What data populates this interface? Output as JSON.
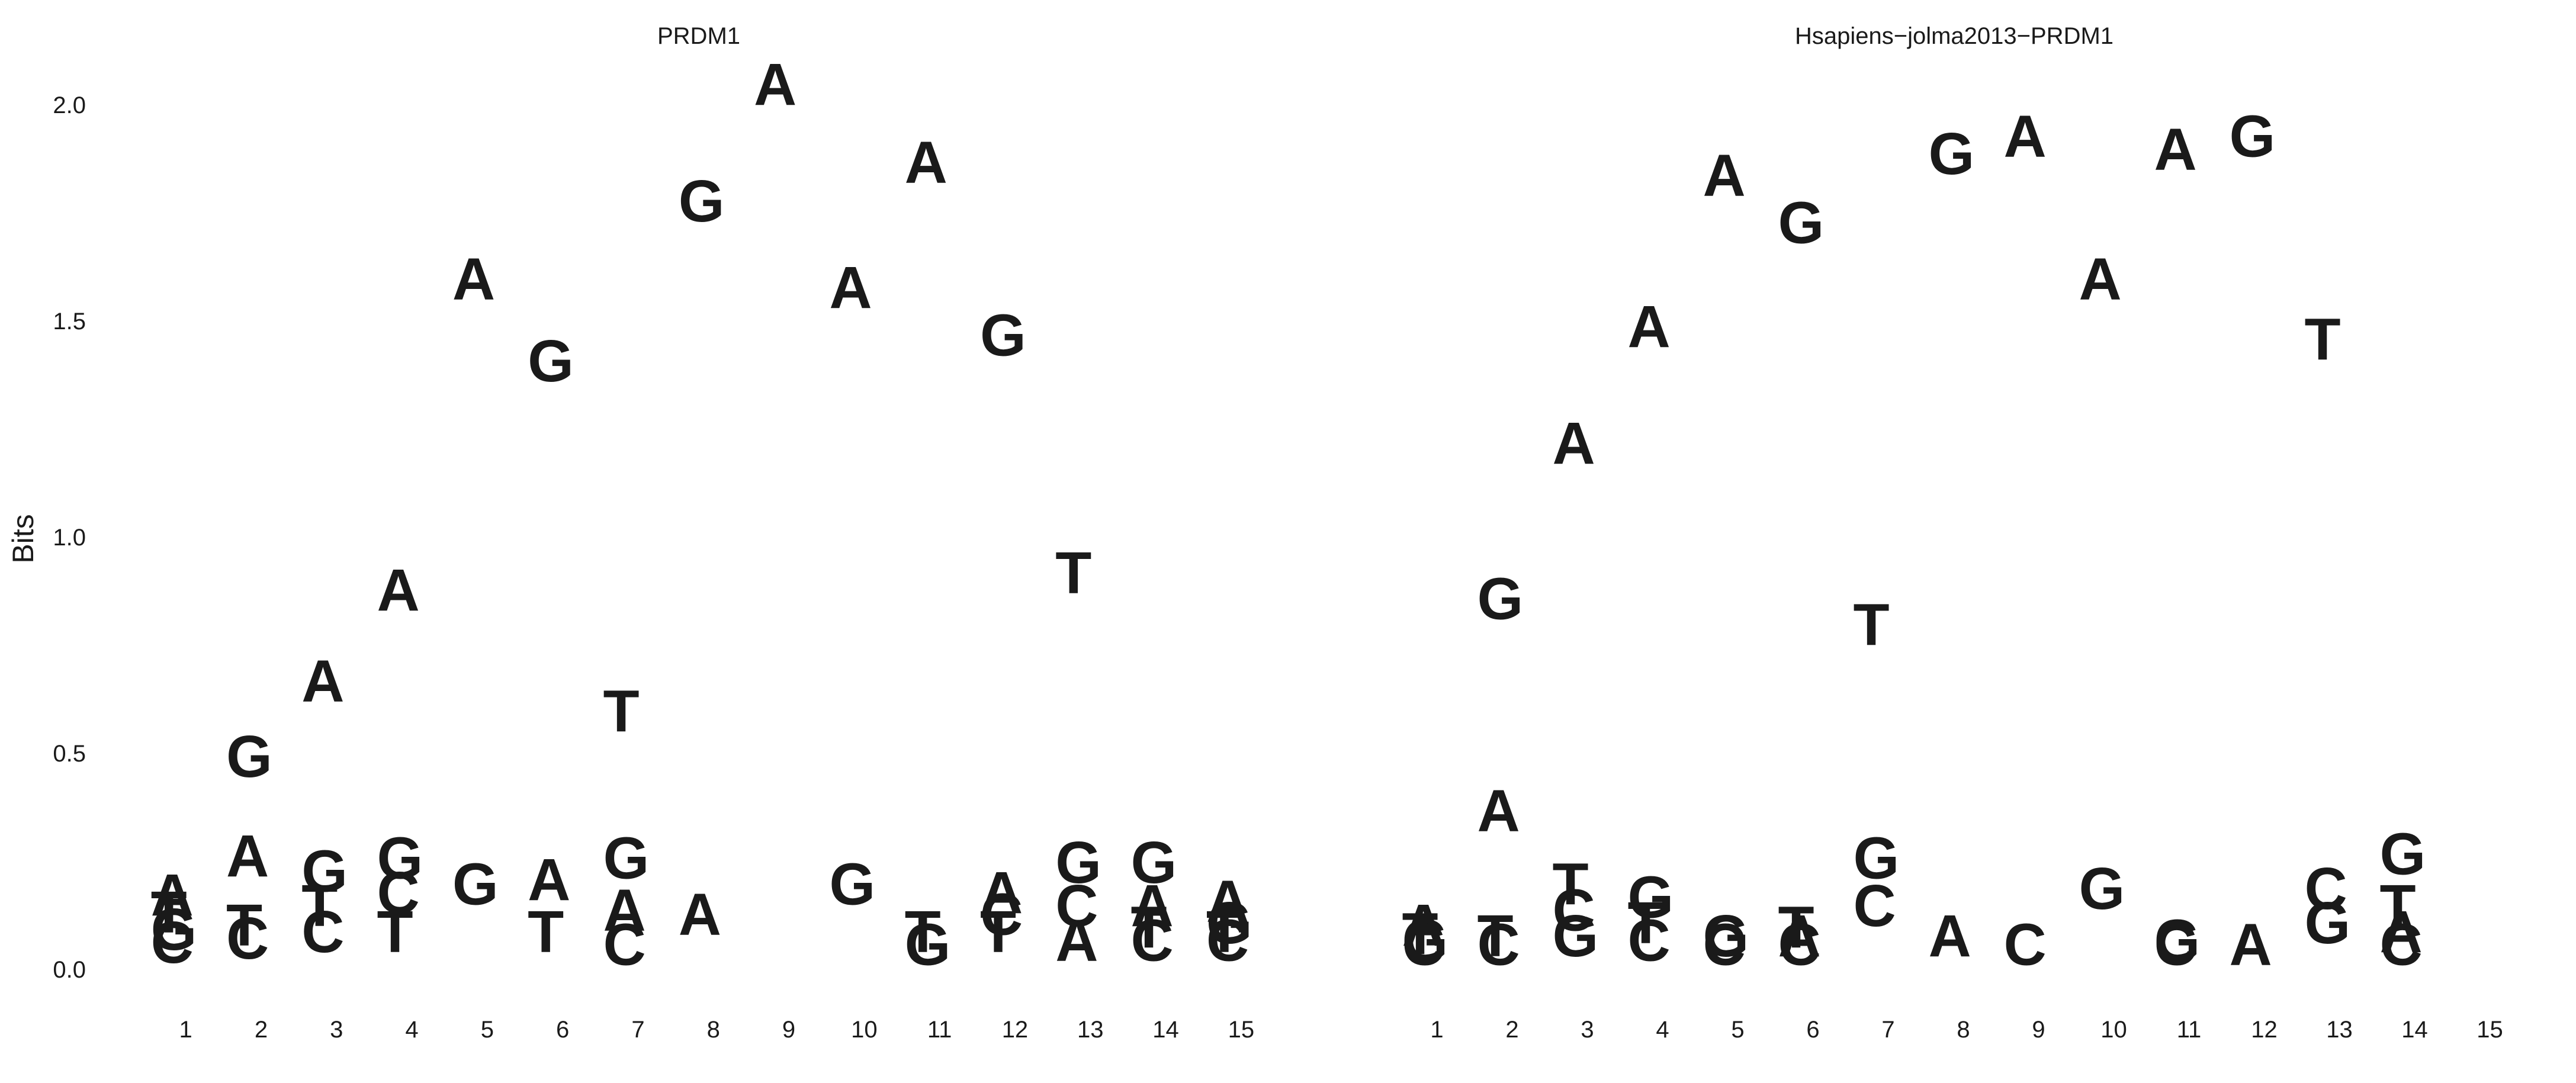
{
  "colors": {
    "A": "#109648",
    "C": "#255C99",
    "G": "#F7B32B",
    "T": "#D62839"
  },
  "chart_data": [
    {
      "type": "sequence-logo",
      "title": "PRDM1",
      "ylabel": "Bits",
      "ylim": [
        0,
        2.0
      ],
      "yticks": [
        "0.0",
        "0.5",
        "1.0",
        "1.5",
        "2.0"
      ],
      "positions": [
        "1",
        "2",
        "3",
        "4",
        "5",
        "6",
        "7",
        "8",
        "9",
        "10",
        "11",
        "12",
        "13",
        "14",
        "15"
      ],
      "stacks": [
        [
          {
            "letter": "C",
            "height": 0.015
          },
          {
            "letter": "G",
            "height": 0.03
          },
          {
            "letter": "T",
            "height": 0.04
          },
          {
            "letter": "A",
            "height": 0.04
          }
        ],
        [
          {
            "letter": "C",
            "height": 0.025
          },
          {
            "letter": "T",
            "height": 0.03
          },
          {
            "letter": "A",
            "height": 0.16
          },
          {
            "letter": "G",
            "height": 0.23
          }
        ],
        [
          {
            "letter": "C",
            "height": 0.04
          },
          {
            "letter": "T",
            "height": 0.06
          },
          {
            "letter": "G",
            "height": 0.08
          },
          {
            "letter": "A",
            "height": 0.44
          }
        ],
        [
          {
            "letter": "T",
            "height": 0.04
          },
          {
            "letter": "C",
            "height": 0.09
          },
          {
            "letter": "G",
            "height": 0.08
          },
          {
            "letter": "A",
            "height": 0.62
          }
        ],
        [
          {
            "letter": "G",
            "height": 0.15
          },
          {
            "letter": "A",
            "height": 1.4
          }
        ],
        [
          {
            "letter": "T",
            "height": 0.04
          },
          {
            "letter": "A",
            "height": 0.12
          },
          {
            "letter": "G",
            "height": 1.2
          }
        ],
        [
          {
            "letter": "C",
            "height": 0.01
          },
          {
            "letter": "A",
            "height": 0.08
          },
          {
            "letter": "G",
            "height": 0.12
          },
          {
            "letter": "T",
            "height": 0.34
          }
        ],
        [
          {
            "letter": "A",
            "height": 0.08
          },
          {
            "letter": "G",
            "height": 1.65
          }
        ],
        [
          {
            "letter": "A",
            "height": 2.0
          }
        ],
        [
          {
            "letter": "G",
            "height": 0.15
          },
          {
            "letter": "A",
            "height": 1.38
          }
        ],
        [
          {
            "letter": "G",
            "height": 0.01
          },
          {
            "letter": "T",
            "height": 0.03
          },
          {
            "letter": "A",
            "height": 1.78
          }
        ],
        [
          {
            "letter": "T",
            "height": 0.04
          },
          {
            "letter": "C",
            "height": 0.04
          },
          {
            "letter": "A",
            "height": 0.05
          },
          {
            "letter": "G",
            "height": 1.29
          }
        ],
        [
          {
            "letter": "A",
            "height": 0.02
          },
          {
            "letter": "C",
            "height": 0.08
          },
          {
            "letter": "G",
            "height": 0.1
          },
          {
            "letter": "T",
            "height": 0.67
          }
        ],
        [
          {
            "letter": "C",
            "height": 0.02
          },
          {
            "letter": "T",
            "height": 0.03
          },
          {
            "letter": "A",
            "height": 0.05
          },
          {
            "letter": "G",
            "height": 0.1
          }
        ],
        [
          {
            "letter": "C",
            "height": 0.02
          },
          {
            "letter": "T",
            "height": 0.02
          },
          {
            "letter": "G",
            "height": 0.02
          },
          {
            "letter": "A",
            "height": 0.05
          }
        ]
      ]
    },
    {
      "type": "sequence-logo",
      "title": "Hsapiens−jolma2013−PRDM1",
      "ylabel": "",
      "ylim": [
        0,
        2.0
      ],
      "yticks": [],
      "positions": [
        "1",
        "2",
        "3",
        "4",
        "5",
        "6",
        "7",
        "8",
        "9",
        "10",
        "11",
        "12",
        "13",
        "14",
        "15"
      ],
      "stacks": [
        [
          {
            "letter": "C",
            "height": 0.01
          },
          {
            "letter": "G",
            "height": 0.01
          },
          {
            "letter": "T",
            "height": 0.015
          },
          {
            "letter": "A",
            "height": 0.02
          }
        ],
        [
          {
            "letter": "C",
            "height": 0.01
          },
          {
            "letter": "T",
            "height": 0.02
          },
          {
            "letter": "A",
            "height": 0.29
          },
          {
            "letter": "G",
            "height": 0.49
          }
        ],
        [
          {
            "letter": "G",
            "height": 0.03
          },
          {
            "letter": "C",
            "height": 0.06
          },
          {
            "letter": "T",
            "height": 0.06
          },
          {
            "letter": "A",
            "height": 1.02
          }
        ],
        [
          {
            "letter": "C",
            "height": 0.02
          },
          {
            "letter": "T",
            "height": 0.04
          },
          {
            "letter": "G",
            "height": 0.06
          },
          {
            "letter": "A",
            "height": 1.32
          }
        ],
        [
          {
            "letter": "C",
            "height": 0.01
          },
          {
            "letter": "G",
            "height": 0.02
          },
          {
            "letter": "A",
            "height": 1.76
          }
        ],
        [
          {
            "letter": "C",
            "height": 0.01
          },
          {
            "letter": "A",
            "height": 0.02
          },
          {
            "letter": "T",
            "height": 0.02
          },
          {
            "letter": "G",
            "height": 1.63
          }
        ],
        [
          {
            "letter": "C",
            "height": 0.1
          },
          {
            "letter": "G",
            "height": 0.11
          },
          {
            "letter": "T",
            "height": 0.54
          }
        ],
        [
          {
            "letter": "A",
            "height": 0.03
          },
          {
            "letter": "G",
            "height": 1.81
          }
        ],
        [
          {
            "letter": "C",
            "height": 0.01
          },
          {
            "letter": "A",
            "height": 1.87
          }
        ],
        [
          {
            "letter": "G",
            "height": 0.14
          },
          {
            "letter": "A",
            "height": 1.41
          }
        ],
        [
          {
            "letter": "C",
            "height": 0.01
          },
          {
            "letter": "G",
            "height": 0.01
          },
          {
            "letter": "A",
            "height": 1.83
          }
        ],
        [
          {
            "letter": "A",
            "height": 0.01
          },
          {
            "letter": "G",
            "height": 1.87
          }
        ],
        [
          {
            "letter": "G",
            "height": 0.06
          },
          {
            "letter": "C",
            "height": 0.08
          },
          {
            "letter": "T",
            "height": 1.27
          }
        ],
        [
          {
            "letter": "C",
            "height": 0.01
          },
          {
            "letter": "A",
            "height": 0.03
          },
          {
            "letter": "T",
            "height": 0.06
          },
          {
            "letter": "G",
            "height": 0.12
          }
        ],
        []
      ]
    }
  ]
}
